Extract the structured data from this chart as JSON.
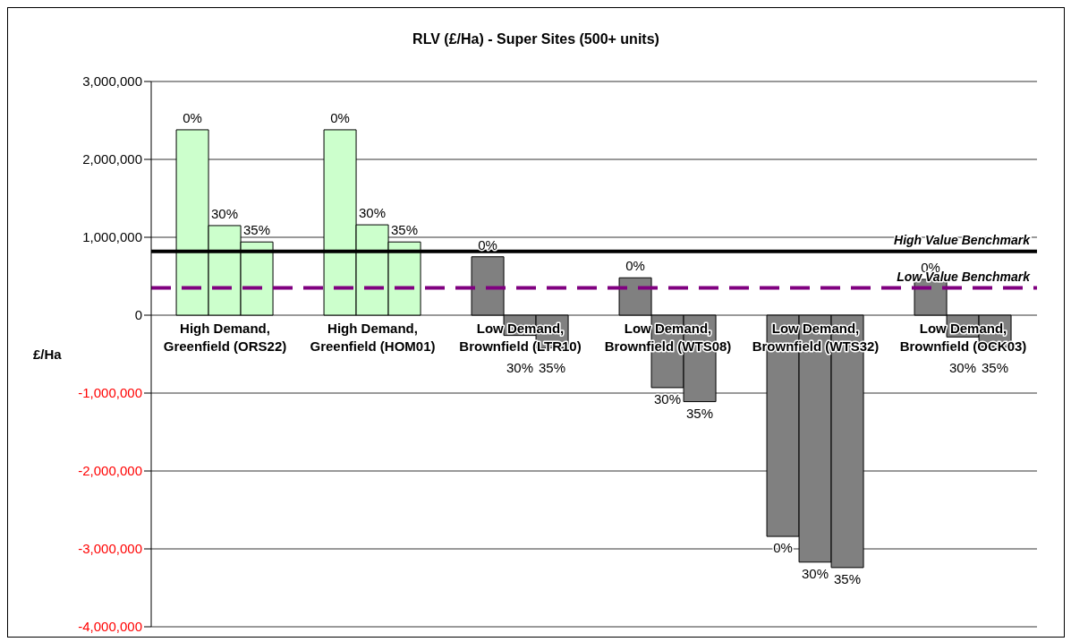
{
  "chart_data": {
    "type": "bar",
    "title": "RLV (£/Ha) - Super Sites (500+ units)",
    "ylabel": "£/Ha",
    "categories": [
      "High Demand, Greenfield (ORS22)",
      "High Demand, Greenfield (HOM01)",
      "Low Demand, Brownfield (LTR10)",
      "Low Demand, Brownfield (WTS08)",
      "Low Demand, Brownfield (WTS32)",
      "Low Demand, Brownfield (OCK03)"
    ],
    "series": [
      {
        "name": "0%",
        "values": [
          2380000,
          2380000,
          750000,
          480000,
          -2840000,
          460000
        ],
        "colors": [
          "#ccffcc",
          "#ccffcc",
          "#808080",
          "#808080",
          "#808080",
          "#808080"
        ]
      },
      {
        "name": "30%",
        "values": [
          1150000,
          1160000,
          -260000,
          -930000,
          -3170000,
          -280000
        ],
        "colors": [
          "#ccffcc",
          "#ccffcc",
          "#808080",
          "#808080",
          "#808080",
          "#808080"
        ]
      },
      {
        "name": "35%",
        "values": [
          940000,
          940000,
          -420000,
          -1110000,
          -3240000,
          -410000
        ],
        "colors": [
          "#ccffcc",
          "#ccffcc",
          "#808080",
          "#808080",
          "#808080",
          "#808080"
        ]
      }
    ],
    "ylim": [
      -4000000,
      3000000
    ],
    "yticks": [
      {
        "value": -4000000,
        "label": "-4,000,000"
      },
      {
        "value": -3000000,
        "label": "-3,000,000"
      },
      {
        "value": -2000000,
        "label": "-2,000,000"
      },
      {
        "value": -1000000,
        "label": "-1,000,000"
      },
      0,
      {
        "value": 1000000,
        "label": "1,000,000"
      },
      {
        "value": 2000000,
        "label": "2,000,000"
      },
      {
        "value": 3000000,
        "label": "3,000,000"
      }
    ],
    "ref_lines": [
      {
        "axis": "y",
        "value": 820000,
        "label": "High Value Benchmark",
        "color": "#000000",
        "line_style": "solid"
      },
      {
        "axis": "y",
        "value": 350000,
        "label": "Low Value Benchmark",
        "color": "#800080",
        "line_style": "dashed"
      }
    ],
    "grid": "y",
    "legend": false
  }
}
